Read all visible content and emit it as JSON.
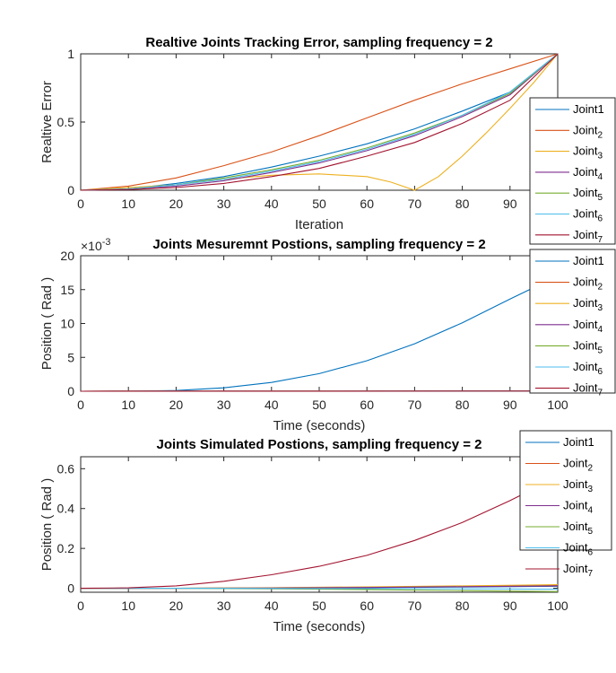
{
  "chart_data": [
    {
      "type": "line",
      "title": "Realtive Joints Tracking Error, sampling frequency = 2",
      "xlabel": "Iteration",
      "ylabel": "Realtive Error",
      "xlim": [
        0,
        100
      ],
      "ylim": [
        0,
        1
      ],
      "xticks": [
        "0",
        "10",
        "20",
        "30",
        "40",
        "50",
        "60",
        "70",
        "80",
        "90"
      ],
      "yticks": [
        "0",
        "0.5",
        "1"
      ],
      "exponent": "",
      "legend_position": "right",
      "grid": false,
      "series": [
        {
          "name": "Joint1",
          "label_base": "Joint1",
          "label_sub": "",
          "color": "#0072BD",
          "x": [
            0,
            10,
            20,
            30,
            40,
            50,
            60,
            70,
            80,
            90,
            100
          ],
          "y": [
            0,
            0.01,
            0.05,
            0.1,
            0.17,
            0.25,
            0.34,
            0.45,
            0.58,
            0.72,
            1.0
          ]
        },
        {
          "name": "Joint2",
          "label_base": "Joint",
          "label_sub": "2",
          "color": "#D95319",
          "x": [
            0,
            10,
            20,
            30,
            40,
            50,
            60,
            70,
            80,
            90,
            100
          ],
          "y": [
            0,
            0.03,
            0.09,
            0.18,
            0.28,
            0.4,
            0.53,
            0.66,
            0.78,
            0.89,
            1.0
          ]
        },
        {
          "name": "Joint3",
          "label_base": "Joint",
          "label_sub": "3",
          "color": "#EDB120",
          "x": [
            0,
            10,
            20,
            30,
            40,
            50,
            60,
            65,
            70,
            75,
            80,
            85,
            90,
            95,
            100
          ],
          "y": [
            0,
            0.02,
            0.04,
            0.08,
            0.11,
            0.12,
            0.1,
            0.06,
            0.0,
            0.1,
            0.25,
            0.42,
            0.6,
            0.79,
            1.0
          ]
        },
        {
          "name": "Joint4",
          "label_base": "Joint",
          "label_sub": "4",
          "color": "#7E2F8E",
          "x": [
            0,
            10,
            20,
            30,
            40,
            50,
            60,
            70,
            80,
            90,
            100
          ],
          "y": [
            0,
            0.01,
            0.03,
            0.07,
            0.13,
            0.2,
            0.29,
            0.4,
            0.54,
            0.7,
            1.0
          ]
        },
        {
          "name": "Joint5",
          "label_base": "Joint",
          "label_sub": "5",
          "color": "#77AC30",
          "x": [
            0,
            10,
            20,
            30,
            40,
            50,
            60,
            70,
            80,
            90,
            100
          ],
          "y": [
            0,
            0.01,
            0.04,
            0.09,
            0.15,
            0.22,
            0.31,
            0.42,
            0.55,
            0.71,
            1.0
          ]
        },
        {
          "name": "Joint6",
          "label_base": "Joint",
          "label_sub": "6",
          "color": "#4DBEEE",
          "x": [
            0,
            10,
            20,
            30,
            40,
            50,
            60,
            70,
            80,
            90,
            100
          ],
          "y": [
            0,
            0.01,
            0.04,
            0.08,
            0.14,
            0.21,
            0.3,
            0.41,
            0.55,
            0.72,
            1.0
          ]
        },
        {
          "name": "Joint7",
          "label_base": "Joint",
          "label_sub": "7",
          "color": "#A2142F",
          "x": [
            0,
            10,
            20,
            30,
            40,
            50,
            60,
            70,
            80,
            90,
            100
          ],
          "y": [
            0,
            0.005,
            0.02,
            0.05,
            0.1,
            0.16,
            0.25,
            0.35,
            0.49,
            0.66,
            1.0
          ]
        }
      ]
    },
    {
      "type": "line",
      "title": "Joints Mesuremnt Postions, sampling frequency = 2",
      "xlabel": "Time (seconds)",
      "ylabel": "Position ( Rad )",
      "xlim": [
        0,
        100
      ],
      "ylim": [
        0,
        20
      ],
      "xticks": [
        "0",
        "10",
        "20",
        "30",
        "40",
        "50",
        "60",
        "70",
        "80",
        "90",
        "100"
      ],
      "yticks": [
        "0",
        "5",
        "10",
        "15",
        "20"
      ],
      "exponent": "×10",
      "exponent_power": "-3",
      "legend_position": "right",
      "grid": false,
      "series": [
        {
          "name": "Joint1",
          "label_base": "Joint1",
          "label_sub": "",
          "color": "#0072BD",
          "x": [
            0,
            10,
            20,
            30,
            40,
            50,
            60,
            70,
            80,
            90,
            100
          ],
          "y": [
            0,
            0,
            0.1,
            0.5,
            1.3,
            2.6,
            4.5,
            7.0,
            10.1,
            13.6,
            17.0
          ]
        },
        {
          "name": "Joint2",
          "label_base": "Joint",
          "label_sub": "2",
          "color": "#D95319",
          "x": [
            0,
            100
          ],
          "y": [
            0,
            0.02
          ]
        },
        {
          "name": "Joint3",
          "label_base": "Joint",
          "label_sub": "3",
          "color": "#EDB120",
          "x": [
            0,
            100
          ],
          "y": [
            0,
            0.02
          ]
        },
        {
          "name": "Joint4",
          "label_base": "Joint",
          "label_sub": "4",
          "color": "#7E2F8E",
          "x": [
            0,
            100
          ],
          "y": [
            0,
            0.02
          ]
        },
        {
          "name": "Joint5",
          "label_base": "Joint",
          "label_sub": "5",
          "color": "#77AC30",
          "x": [
            0,
            100
          ],
          "y": [
            0,
            0.02
          ]
        },
        {
          "name": "Joint6",
          "label_base": "Joint",
          "label_sub": "6",
          "color": "#4DBEEE",
          "x": [
            0,
            100
          ],
          "y": [
            0,
            0.02
          ]
        },
        {
          "name": "Joint7",
          "label_base": "Joint",
          "label_sub": "7",
          "color": "#A2142F",
          "x": [
            0,
            100
          ],
          "y": [
            0,
            0.03
          ]
        }
      ]
    },
    {
      "type": "line",
      "title": "Joints Simulated Postions, sampling frequency = 2",
      "xlabel": "Time (seconds)",
      "ylabel": "Position ( Rad )",
      "xlim": [
        0,
        100
      ],
      "ylim": [
        -0.02,
        0.66
      ],
      "xticks": [
        "0",
        "10",
        "20",
        "30",
        "40",
        "50",
        "60",
        "70",
        "80",
        "90",
        "100"
      ],
      "yticks": [
        "0",
        "0.2",
        "0.4",
        "0.6"
      ],
      "ytick_values": [
        0,
        0.2,
        0.4,
        0.6
      ],
      "exponent": "",
      "legend_position": "right",
      "grid": false,
      "series": [
        {
          "name": "Joint1",
          "label_base": "Joint1",
          "label_sub": "",
          "color": "#0072BD",
          "x": [
            0,
            20,
            40,
            60,
            80,
            100
          ],
          "y": [
            0,
            0,
            0.001,
            0.003,
            0.006,
            0.01
          ]
        },
        {
          "name": "Joint2",
          "label_base": "Joint",
          "label_sub": "2",
          "color": "#D95319",
          "x": [
            0,
            20,
            40,
            60,
            80,
            100
          ],
          "y": [
            0,
            0,
            0.002,
            0.005,
            0.01,
            0.015
          ]
        },
        {
          "name": "Joint3",
          "label_base": "Joint",
          "label_sub": "3",
          "color": "#EDB120",
          "x": [
            0,
            20,
            40,
            60,
            80,
            100
          ],
          "y": [
            0,
            0,
            0.003,
            0.007,
            0.012,
            0.018
          ]
        },
        {
          "name": "Joint4",
          "label_base": "Joint",
          "label_sub": "4",
          "color": "#7E2F8E",
          "x": [
            0,
            20,
            40,
            60,
            80,
            100
          ],
          "y": [
            0,
            0,
            0.001,
            0.004,
            0.008,
            0.012
          ]
        },
        {
          "name": "Joint5",
          "label_base": "Joint",
          "label_sub": "5",
          "color": "#77AC30",
          "x": [
            0,
            20,
            40,
            60,
            80,
            100
          ],
          "y": [
            0,
            0,
            -0.003,
            -0.007,
            -0.012,
            -0.017
          ]
        },
        {
          "name": "Joint6",
          "label_base": "Joint",
          "label_sub": "6",
          "color": "#4DBEEE",
          "x": [
            0,
            20,
            40,
            60,
            80,
            100
          ],
          "y": [
            0,
            0,
            -0.001,
            -0.002,
            -0.003,
            -0.005
          ]
        },
        {
          "name": "Joint7",
          "label_base": "Joint",
          "label_sub": "7",
          "color": "#A2142F",
          "x": [
            0,
            10,
            20,
            30,
            40,
            50,
            60,
            70,
            80,
            90,
            100
          ],
          "y": [
            0,
            0.002,
            0.012,
            0.035,
            0.068,
            0.11,
            0.165,
            0.24,
            0.33,
            0.44,
            0.56
          ]
        }
      ]
    }
  ]
}
